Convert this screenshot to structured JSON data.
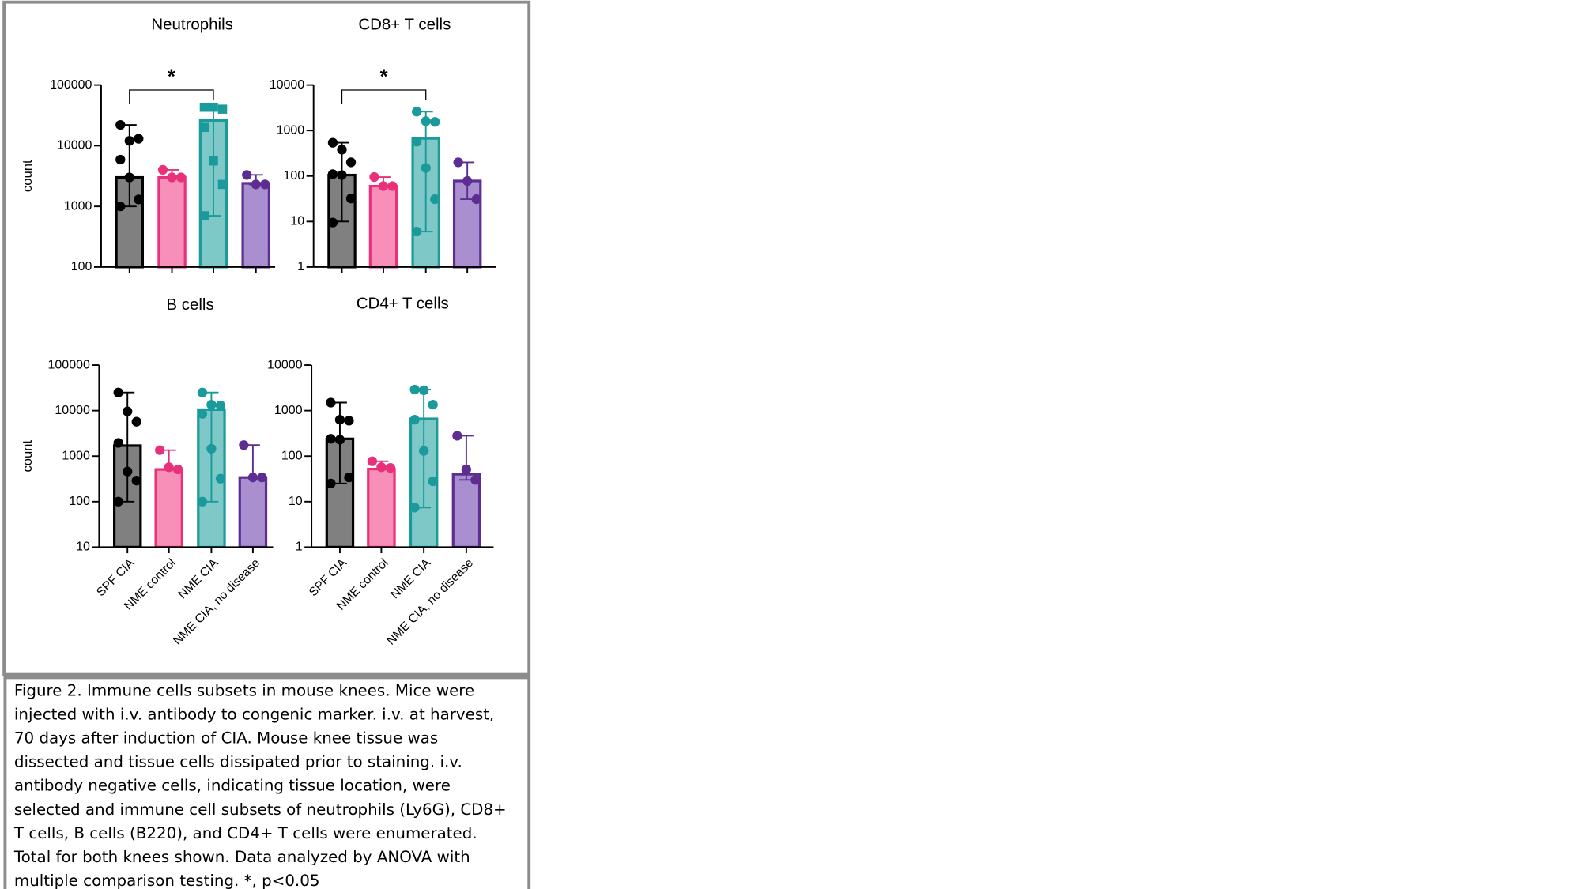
{
  "chart_data": [
    {
      "type": "bar",
      "title": "Neutrophils",
      "ylabel": "count",
      "log_y": true,
      "categories": [
        null,
        null,
        null,
        null
      ],
      "values": [
        3000,
        3000,
        26000,
        2400
      ],
      "error_high": [
        22000,
        4000,
        43000,
        3300
      ],
      "error_low": [
        1000,
        3000,
        700,
        2300
      ],
      "points": [
        [
          22000,
          12000,
          13000,
          5900,
          3000,
          1300,
          1000
        ],
        [
          4000,
          3000,
          3000
        ],
        [
          43000,
          43000,
          40000,
          20000,
          5600,
          2300,
          700
        ],
        [
          3300,
          2300,
          2300
        ]
      ],
      "markers": [
        "circle",
        "circle",
        "square",
        "circle"
      ],
      "colors": [
        "#808080",
        "#f78fb8",
        "#7ec8c8",
        "#a98fd0"
      ],
      "edge_colors": [
        "#000000",
        "#e8317a",
        "#1a9a9a",
        "#5e2d91"
      ],
      "ylim": [
        100,
        100000
      ],
      "yticks": [
        100,
        1000,
        10000,
        100000
      ],
      "significance": [
        {
          "from": 0,
          "to": 2,
          "label": "*"
        }
      ]
    },
    {
      "type": "bar",
      "title": "CD8+ T cells",
      "log_y": true,
      "categories": [
        null,
        null,
        null,
        null
      ],
      "values": [
        105,
        60,
        670,
        78
      ],
      "error_high": [
        540,
        95,
        2600,
        200
      ],
      "error_low": [
        10,
        60,
        6,
        31
      ],
      "points": [
        [
          540,
          380,
          200,
          110,
          105,
          32,
          9.5
        ],
        [
          95,
          60,
          60
        ],
        [
          2600,
          1600,
          1550,
          570,
          150,
          31,
          6
        ],
        [
          200,
          78,
          31
        ]
      ],
      "markers": [
        "circle",
        "circle",
        "circle",
        "circle"
      ],
      "colors": [
        "#808080",
        "#f78fb8",
        "#7ec8c8",
        "#a98fd0"
      ],
      "edge_colors": [
        "#000000",
        "#e8317a",
        "#1a9a9a",
        "#5e2d91"
      ],
      "ylim": [
        1,
        10000
      ],
      "yticks": [
        1,
        10,
        100,
        1000,
        10000
      ],
      "significance": [
        {
          "from": 0,
          "to": 2,
          "label": "*"
        }
      ]
    },
    {
      "type": "bar",
      "title": "B cells",
      "ylabel": "count",
      "log_y": true,
      "categories": [
        "SPF CIA",
        "NME control",
        "NME CIA",
        "NME CIA, no disease"
      ],
      "values": [
        1700,
        510,
        10500,
        340
      ],
      "error_high": [
        25000,
        1350,
        25000,
        1750
      ],
      "error_low": [
        100,
        510,
        100,
        340
      ],
      "points": [
        [
          25000,
          9600,
          5700,
          1950,
          460,
          290,
          100
        ],
        [
          1350,
          570,
          510
        ],
        [
          25000,
          13500,
          13000,
          8500,
          1450,
          320,
          100
        ],
        [
          1750,
          340,
          340
        ]
      ],
      "markers": [
        "circle",
        "circle",
        "circle",
        "circle"
      ],
      "colors": [
        "#808080",
        "#f78fb8",
        "#7ec8c8",
        "#a98fd0"
      ],
      "edge_colors": [
        "#000000",
        "#e8317a",
        "#1a9a9a",
        "#5e2d91"
      ],
      "ylim": [
        10,
        100000
      ],
      "yticks": [
        10,
        100,
        1000,
        10000,
        100000
      ]
    },
    {
      "type": "bar",
      "title": "CD4+ T cells",
      "log_y": true,
      "categories": [
        "SPF CIA",
        "NME control",
        "NME CIA",
        "NME CIA, no disease"
      ],
      "values": [
        240,
        52,
        660,
        40
      ],
      "error_high": [
        1500,
        77,
        2900,
        280
      ],
      "error_low": [
        25,
        52,
        7.4,
        30
      ],
      "points": [
        [
          1500,
          630,
          600,
          240,
          230,
          34,
          25
        ],
        [
          77,
          57,
          55
        ],
        [
          2900,
          2800,
          1350,
          630,
          130,
          28,
          7.4
        ],
        [
          280,
          51,
          30
        ]
      ],
      "markers": [
        "circle",
        "circle",
        "circle",
        "circle"
      ],
      "colors": [
        "#808080",
        "#f78fb8",
        "#7ec8c8",
        "#a98fd0"
      ],
      "edge_colors": [
        "#000000",
        "#e8317a",
        "#1a9a9a",
        "#5e2d91"
      ],
      "ylim": [
        1,
        10000
      ],
      "yticks": [
        1,
        10,
        100,
        1000,
        10000
      ]
    }
  ],
  "caption_lines": [
    "Figure 2. Immune cells subsets in mouse knees. Mice were",
    "injected with i.v. antibody to congenic marker. i.v. at harvest,",
    "70 days after induction of CIA. Mouse knee tissue was",
    "dissected and tissue cells dissipated prior to staining. i.v.",
    "antibody negative cells, indicating tissue location, were",
    "selected and immune cell subsets of neutrophils (Ly6G), CD8+",
    "T cells, B cells (B220), and CD4+ T cells were enumerated.",
    "Total for both knees shown. Data analyzed by ANOVA with",
    "multiple comparison testing. *, p<0.05"
  ]
}
